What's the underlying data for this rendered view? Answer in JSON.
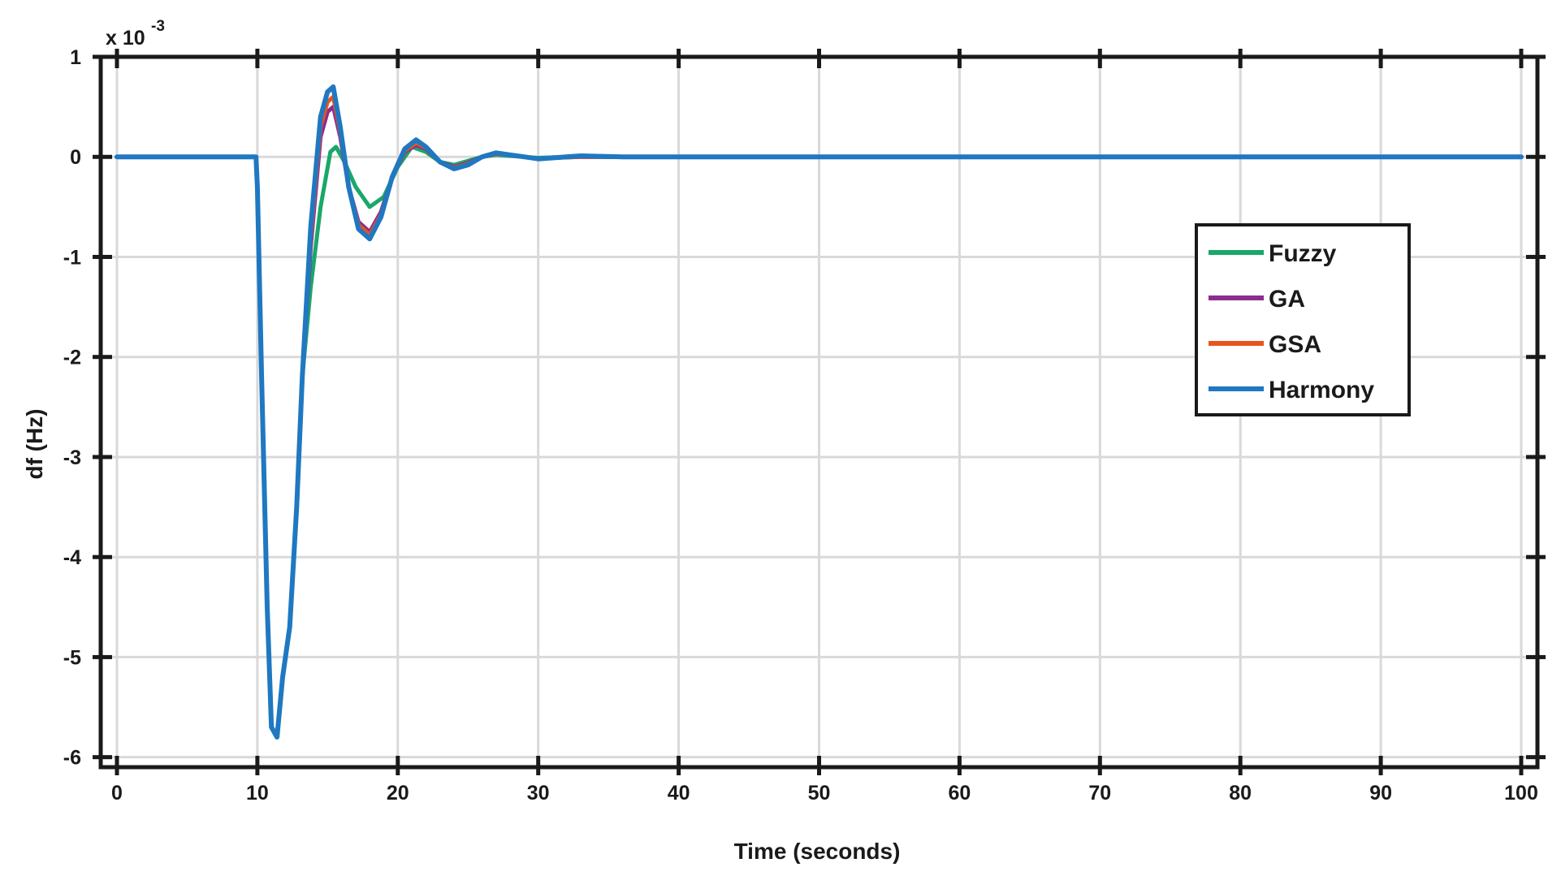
{
  "chart_data": {
    "type": "line",
    "title": "",
    "xlabel": "Time (seconds)",
    "ylabel": "df (Hz)",
    "y_exponent": "x 10",
    "y_exponent_power": "-3",
    "xlim": [
      0,
      100
    ],
    "ylim": [
      -6.1,
      1.0
    ],
    "xticks": [
      0,
      10,
      20,
      30,
      40,
      50,
      60,
      70,
      80,
      90,
      100
    ],
    "yticks": [
      1,
      0,
      -1,
      -2,
      -3,
      -4,
      -5,
      -6
    ],
    "xtick_labels": [
      "0",
      "10",
      "20",
      "30",
      "40",
      "50",
      "60",
      "70",
      "80",
      "90",
      "100"
    ],
    "ytick_labels": [
      "1",
      "0",
      "-1",
      "-2",
      "-3",
      "-4",
      "-5",
      "-6"
    ],
    "grid": true,
    "legend_position": "right",
    "series": [
      {
        "name": "Fuzzy",
        "color": "#1aa76a",
        "x": [
          0,
          9.9,
          10.0,
          10.3,
          10.7,
          11.0,
          11.4,
          11.8,
          12.3,
          12.8,
          13.2,
          13.8,
          14.5,
          15.2,
          15.6,
          16.2,
          17.0,
          18.0,
          19.0,
          20.0,
          21.0,
          22.0,
          23.0,
          24.0,
          25.0,
          26.0,
          27.0,
          28.0,
          29.0,
          30.0,
          32.0,
          36.0,
          100
        ],
        "y": [
          0,
          0,
          -0.3,
          -2.2,
          -4.5,
          -5.7,
          -5.8,
          -5.2,
          -4.7,
          -3.5,
          -2.2,
          -1.3,
          -0.5,
          0.05,
          0.1,
          -0.05,
          -0.3,
          -0.5,
          -0.4,
          -0.1,
          0.1,
          0.05,
          -0.05,
          -0.08,
          -0.04,
          0.0,
          0.02,
          0.01,
          0.0,
          -0.01,
          0.0,
          0.0,
          0.0
        ]
      },
      {
        "name": "GA",
        "color": "#8a2d8f",
        "x": [
          0,
          9.9,
          10.0,
          10.3,
          10.7,
          11.0,
          11.4,
          11.8,
          12.3,
          12.8,
          13.2,
          13.8,
          14.5,
          15.0,
          15.4,
          15.9,
          16.5,
          17.2,
          18.0,
          18.8,
          19.6,
          20.5,
          21.3,
          22.0,
          23.0,
          24.0,
          25.0,
          26.0,
          27.0,
          28.0,
          29.0,
          30.0,
          31.0,
          33.0,
          36.0,
          100
        ],
        "y": [
          0,
          0,
          -0.3,
          -2.2,
          -4.5,
          -5.7,
          -5.8,
          -5.2,
          -4.7,
          -3.5,
          -2.2,
          -0.9,
          0.2,
          0.45,
          0.5,
          0.2,
          -0.3,
          -0.65,
          -0.75,
          -0.55,
          -0.2,
          0.05,
          0.12,
          0.08,
          -0.05,
          -0.1,
          -0.06,
          0.0,
          0.03,
          0.02,
          0.0,
          -0.02,
          -0.01,
          0.0,
          0.0,
          0.0
        ]
      },
      {
        "name": "GSA",
        "color": "#e8541e",
        "x": [
          0,
          9.9,
          10.0,
          10.3,
          10.7,
          11.0,
          11.4,
          11.8,
          12.3,
          12.8,
          13.2,
          13.8,
          14.5,
          15.0,
          15.4,
          15.9,
          16.5,
          17.2,
          18.0,
          18.8,
          19.6,
          20.5,
          21.3,
          22.0,
          23.0,
          24.0,
          25.0,
          26.0,
          27.0,
          28.0,
          29.0,
          30.0,
          31.0,
          33.0,
          36.0,
          100
        ],
        "y": [
          0,
          0,
          -0.3,
          -2.2,
          -4.5,
          -5.7,
          -5.8,
          -5.2,
          -4.7,
          -3.5,
          -2.2,
          -0.8,
          0.3,
          0.55,
          0.6,
          0.25,
          -0.3,
          -0.68,
          -0.78,
          -0.58,
          -0.2,
          0.06,
          0.14,
          0.09,
          -0.05,
          -0.11,
          -0.07,
          0.0,
          0.03,
          0.02,
          0.0,
          -0.02,
          -0.01,
          0.0,
          0.0,
          0.0
        ]
      },
      {
        "name": "Harmony",
        "color": "#1f78c1",
        "x": [
          0,
          9.9,
          10.0,
          10.3,
          10.7,
          11.0,
          11.4,
          11.8,
          12.3,
          12.8,
          13.2,
          13.8,
          14.5,
          15.0,
          15.4,
          15.9,
          16.5,
          17.2,
          18.0,
          18.8,
          19.6,
          20.5,
          21.3,
          22.0,
          23.0,
          24.0,
          25.0,
          26.0,
          27.0,
          28.0,
          29.0,
          30.0,
          31.0,
          33.0,
          36.0,
          100
        ],
        "y": [
          0,
          0,
          -0.3,
          -2.2,
          -4.5,
          -5.7,
          -5.8,
          -5.2,
          -4.7,
          -3.5,
          -2.2,
          -0.7,
          0.4,
          0.65,
          0.7,
          0.3,
          -0.3,
          -0.72,
          -0.82,
          -0.6,
          -0.2,
          0.08,
          0.17,
          0.1,
          -0.05,
          -0.12,
          -0.08,
          0.0,
          0.04,
          0.02,
          0.0,
          -0.02,
          -0.01,
          0.01,
          0.0,
          0.0
        ]
      }
    ]
  }
}
